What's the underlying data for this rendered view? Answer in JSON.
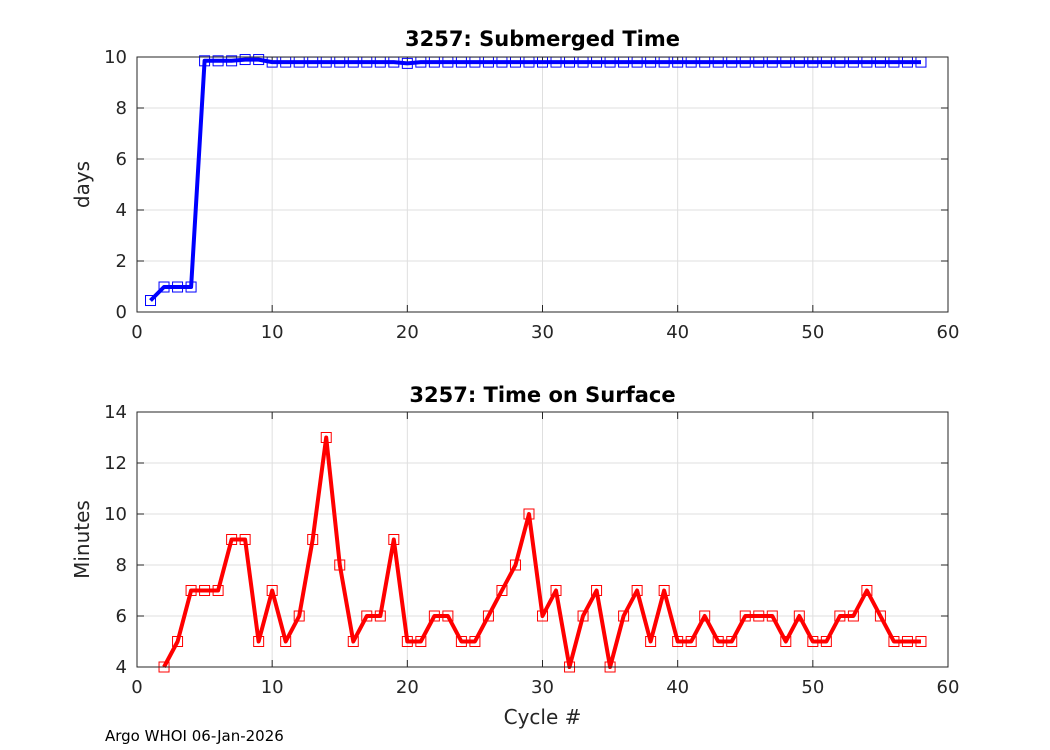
{
  "footer": "Argo WHOI 06-Jan-2026",
  "chart_data": [
    {
      "type": "line",
      "title": "3257: Submerged Time",
      "xlabel": "",
      "ylabel": "days",
      "xlim": [
        0,
        60
      ],
      "ylim": [
        0,
        10
      ],
      "xticks": [
        0,
        10,
        20,
        30,
        40,
        50,
        60
      ],
      "yticks": [
        0,
        2,
        4,
        6,
        8,
        10
      ],
      "grid": true,
      "color": "#0000ff",
      "marker": "square",
      "x": [
        1,
        2,
        3,
        4,
        5,
        6,
        7,
        8,
        9,
        10,
        11,
        12,
        13,
        14,
        15,
        16,
        17,
        18,
        19,
        20,
        21,
        22,
        23,
        24,
        25,
        26,
        27,
        28,
        29,
        30,
        31,
        32,
        33,
        34,
        35,
        36,
        37,
        38,
        39,
        40,
        41,
        42,
        43,
        44,
        45,
        46,
        47,
        48,
        49,
        50,
        51,
        52,
        53,
        54,
        55,
        56,
        57,
        58
      ],
      "values": [
        0.45,
        0.98,
        0.98,
        0.98,
        9.85,
        9.85,
        9.85,
        9.9,
        9.9,
        9.8,
        9.8,
        9.8,
        9.8,
        9.8,
        9.8,
        9.8,
        9.8,
        9.8,
        9.8,
        9.75,
        9.8,
        9.8,
        9.8,
        9.8,
        9.8,
        9.8,
        9.8,
        9.8,
        9.8,
        9.8,
        9.8,
        9.8,
        9.8,
        9.8,
        9.8,
        9.8,
        9.8,
        9.8,
        9.8,
        9.8,
        9.8,
        9.8,
        9.8,
        9.8,
        9.8,
        9.8,
        9.8,
        9.8,
        9.8,
        9.8,
        9.8,
        9.8,
        9.8,
        9.8,
        9.8,
        9.8,
        9.8,
        9.8
      ]
    },
    {
      "type": "line",
      "title": "3257: Time on Surface",
      "xlabel": "Cycle #",
      "ylabel": "Minutes",
      "xlim": [
        0,
        60
      ],
      "ylim": [
        4,
        14
      ],
      "xticks": [
        0,
        10,
        20,
        30,
        40,
        50,
        60
      ],
      "yticks": [
        4,
        6,
        8,
        10,
        12,
        14
      ],
      "grid": true,
      "color": "#ff0000",
      "marker": "square",
      "x": [
        2,
        3,
        4,
        5,
        6,
        7,
        8,
        9,
        10,
        11,
        12,
        13,
        14,
        15,
        16,
        17,
        18,
        19,
        20,
        21,
        22,
        23,
        24,
        25,
        26,
        27,
        28,
        29,
        30,
        31,
        32,
        33,
        34,
        35,
        36,
        37,
        38,
        39,
        40,
        41,
        42,
        43,
        44,
        45,
        46,
        47,
        48,
        49,
        50,
        51,
        52,
        53,
        54,
        55,
        56,
        57,
        58
      ],
      "values": [
        4,
        5,
        7,
        7,
        7,
        9,
        9,
        5,
        7,
        5,
        6,
        9,
        13,
        8,
        5,
        6,
        6,
        9,
        5,
        5,
        6,
        6,
        5,
        5,
        6,
        7,
        8,
        10,
        6,
        7,
        4,
        6,
        7,
        4,
        6,
        7,
        5,
        7,
        5,
        5,
        6,
        5,
        5,
        6,
        6,
        6,
        5,
        6,
        5,
        5,
        6,
        6,
        7,
        6,
        5,
        5,
        5
      ]
    }
  ]
}
